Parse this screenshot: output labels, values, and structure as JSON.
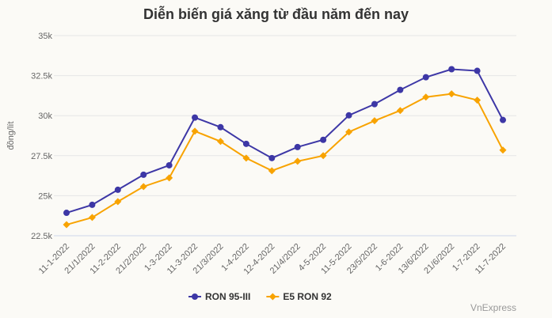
{
  "chart_data": {
    "type": "line",
    "title": "Diễn biến giá xăng từ đầu năm đến nay",
    "xlabel": "",
    "ylabel": "đồng/lít",
    "ylim": [
      22500,
      35000
    ],
    "yticks": [
      22500,
      25000,
      27500,
      30000,
      32500,
      35000
    ],
    "ytick_labels": [
      "22.5k",
      "25k",
      "27.5k",
      "30k",
      "32.5k",
      "35k"
    ],
    "grid": true,
    "legend": "bottom-center",
    "categories": [
      "11-1-2022",
      "21/1/2022",
      "11-2-2022",
      "21/2/2022",
      "1-3-2022",
      "11-3-2022",
      "21/3/2022",
      "1-4-2022",
      "12-4-2022",
      "21/4/2022",
      "4-5-2022",
      "11-5-2022",
      "23/5/2022",
      "1-6-2022",
      "13/6/2022",
      "21/6/2022",
      "1-7-2022",
      "11-7-2022"
    ],
    "series": [
      {
        "name": "RON 95-III",
        "color": "#3d37a6",
        "marker": "circle",
        "values": [
          23930,
          24430,
          25370,
          26310,
          26900,
          29880,
          29280,
          28240,
          27350,
          28040,
          28490,
          30020,
          30720,
          31610,
          32400,
          32900,
          32800,
          29730
        ]
      },
      {
        "name": "E5 RON 92",
        "color": "#f8a300",
        "marker": "diamond",
        "values": [
          23190,
          23640,
          24630,
          25570,
          26110,
          29030,
          28390,
          27350,
          26560,
          27150,
          27500,
          28980,
          29680,
          30320,
          31160,
          31360,
          30970,
          27850
        ]
      }
    ]
  },
  "credit": "VnExpress"
}
